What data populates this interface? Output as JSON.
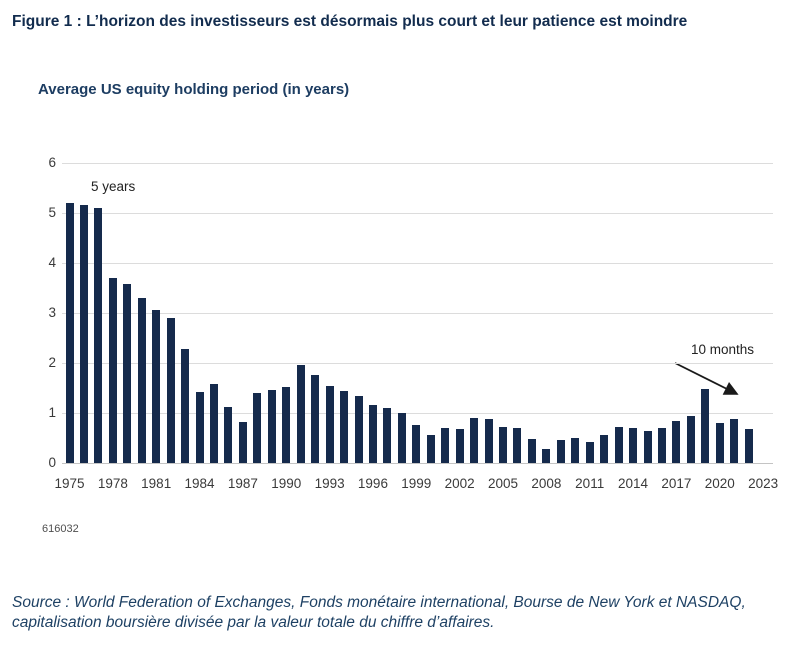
{
  "figure": {
    "title": "Figure 1 : L’horizon des investisseurs est désormais plus court et leur patience est moindre",
    "figure_number": "616032"
  },
  "chart_data": {
    "type": "bar",
    "title": "Average US equity holding period (in years)",
    "xlabel": "",
    "ylabel": "",
    "ylim": [
      0,
      6
    ],
    "y_ticks": [
      0,
      1,
      2,
      3,
      4,
      5,
      6
    ],
    "grid": "horizontal",
    "legend": "none",
    "bar_color": "#152a4c",
    "categories": [
      1975,
      1976,
      1977,
      1978,
      1979,
      1980,
      1981,
      1982,
      1983,
      1984,
      1985,
      1986,
      1987,
      1988,
      1989,
      1990,
      1991,
      1992,
      1993,
      1994,
      1995,
      1996,
      1997,
      1998,
      1999,
      2000,
      2001,
      2002,
      2003,
      2004,
      2005,
      2006,
      2007,
      2008,
      2009,
      2010,
      2011,
      2012,
      2013,
      2014,
      2015,
      2016,
      2017,
      2018,
      2019,
      2020,
      2021,
      2022
    ],
    "values": [
      5.2,
      5.16,
      5.1,
      3.7,
      3.58,
      3.3,
      3.06,
      2.9,
      2.28,
      1.43,
      1.59,
      1.12,
      0.83,
      1.41,
      1.47,
      1.52,
      1.97,
      1.77,
      1.55,
      1.44,
      1.34,
      1.17,
      1.11,
      1.01,
      0.76,
      0.57,
      0.71,
      0.68,
      0.91,
      0.89,
      0.72,
      0.71,
      0.49,
      0.28,
      0.46,
      0.51,
      0.43,
      0.57,
      0.72,
      0.7,
      0.64,
      0.7,
      0.85,
      0.94,
      1.48,
      0.8,
      0.88,
      0.68
    ],
    "x_tick_labels": [
      "1975",
      "1978",
      "1981",
      "1984",
      "1987",
      "1990",
      "1993",
      "1996",
      "1999",
      "2002",
      "2005",
      "2008",
      "2011",
      "2014",
      "2017",
      "2020",
      "2023"
    ],
    "annotations": [
      {
        "text": "5 years"
      },
      {
        "text": "10 months"
      }
    ]
  },
  "footer": {
    "source_line1": "Source : World Federation of Exchanges, Fonds monétaire international, Bourse de New York et NASDAQ,",
    "source_line2": "capitalisation boursière divisée par la valeur totale du chiffre d’affaires."
  }
}
